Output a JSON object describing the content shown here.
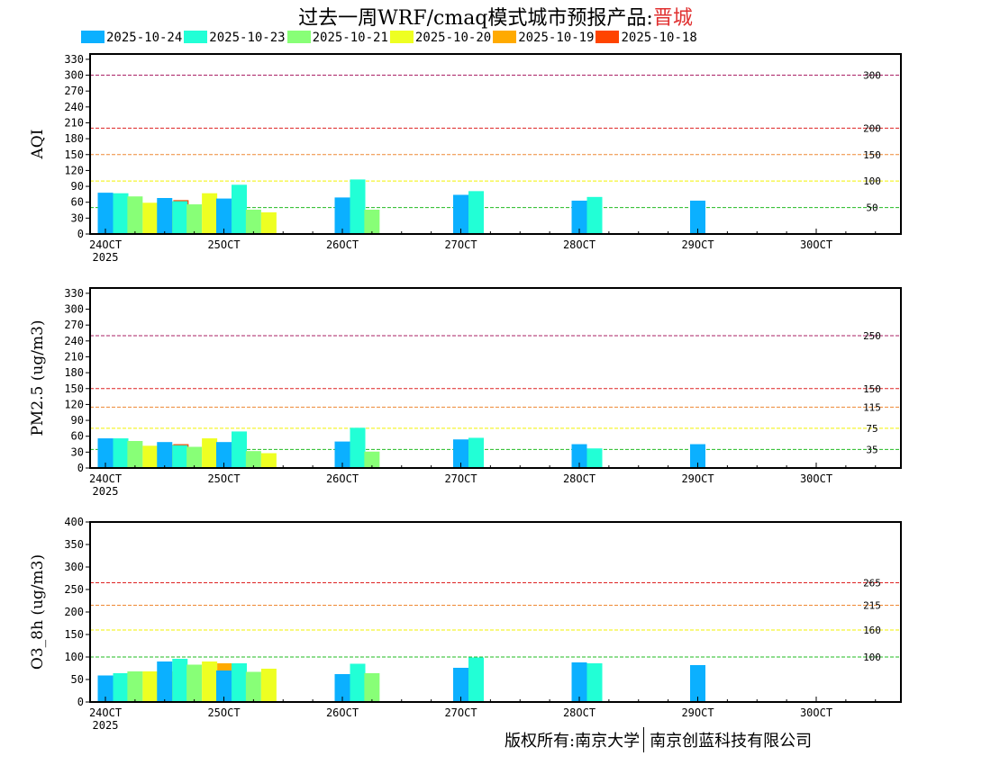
{
  "header": {
    "title_prefix": "过去一周WRF/cmaq模式城市预报产品:",
    "city": "晋城"
  },
  "legend": [
    {
      "label": "2025-10-24",
      "color": "#0bb0ff"
    },
    {
      "label": "2025-10-23",
      "color": "#22ffd6"
    },
    {
      "label": "2025-10-21",
      "color": "#88ff77"
    },
    {
      "label": "2025-10-20",
      "color": "#eeff22"
    },
    {
      "label": "2025-10-19",
      "color": "#ffaa00"
    },
    {
      "label": "2025-10-18",
      "color": "#ff4400"
    }
  ],
  "footer": {
    "copyright_left": "版权所有:南京大学",
    "copyright_right": "南京创蓝科技有限公司"
  },
  "chart_data": [
    {
      "type": "bar",
      "ylabel": "AQI",
      "ylim": [
        0,
        340
      ],
      "yticks": [
        0,
        30,
        60,
        90,
        120,
        150,
        180,
        210,
        240,
        270,
        300,
        330
      ],
      "xticks": [
        "24OCT",
        "25OCT",
        "26OCT",
        "27OCT",
        "28OCT",
        "29OCT",
        "30OCT"
      ],
      "year_label": "2025",
      "thresholds": [
        {
          "value": 300,
          "label": "300",
          "color": "#aa2266"
        },
        {
          "value": 200,
          "label": "200",
          "color": "#dd2222"
        },
        {
          "value": 150,
          "label": "150",
          "color": "#ee8833"
        },
        {
          "value": 100,
          "label": "100",
          "color": "#f2f200"
        },
        {
          "value": 50,
          "label": "50",
          "color": "#22bb22"
        }
      ],
      "groups": [
        {
          "slot": 0,
          "values": [
            78,
            77,
            null,
            null,
            null,
            null
          ]
        },
        {
          "slot": 1,
          "values": [
            null,
            null,
            71,
            59,
            62,
            64
          ]
        },
        {
          "slot": 2,
          "values": [
            68,
            62,
            null,
            null,
            null,
            null
          ]
        },
        {
          "slot": 3,
          "values": [
            null,
            null,
            56,
            77,
            62,
            null
          ]
        },
        {
          "slot": 4,
          "values": [
            67,
            93,
            null,
            null,
            null,
            null
          ]
        },
        {
          "slot": 5,
          "values": [
            null,
            null,
            46,
            41,
            null,
            null
          ]
        },
        {
          "slot": 8,
          "values": [
            69,
            103,
            null,
            null,
            null,
            null
          ]
        },
        {
          "slot": 9,
          "values": [
            null,
            null,
            46,
            null,
            null,
            null
          ]
        },
        {
          "slot": 12,
          "values": [
            74,
            81,
            null,
            null,
            null,
            null
          ]
        },
        {
          "slot": 16,
          "values": [
            63,
            70,
            null,
            null,
            null,
            null
          ]
        },
        {
          "slot": 20,
          "values": [
            63,
            null,
            null,
            null,
            null,
            null
          ]
        }
      ]
    },
    {
      "type": "bar",
      "ylabel": "PM2.5 (ug/m3)",
      "ylim": [
        0,
        340
      ],
      "yticks": [
        0,
        30,
        60,
        90,
        120,
        150,
        180,
        210,
        240,
        270,
        300,
        330
      ],
      "xticks": [
        "24OCT",
        "25OCT",
        "26OCT",
        "27OCT",
        "28OCT",
        "29OCT",
        "30OCT"
      ],
      "year_label": "2025",
      "thresholds": [
        {
          "value": 250,
          "label": "250",
          "color": "#aa2266"
        },
        {
          "value": 150,
          "label": "150",
          "color": "#dd2222"
        },
        {
          "value": 115,
          "label": "115",
          "color": "#ee8833"
        },
        {
          "value": 75,
          "label": "75",
          "color": "#f2f200"
        },
        {
          "value": 35,
          "label": "35",
          "color": "#22bb22"
        }
      ],
      "groups": [
        {
          "slot": 0,
          "values": [
            56,
            56,
            null,
            null,
            null,
            null
          ]
        },
        {
          "slot": 1,
          "values": [
            null,
            null,
            51,
            42,
            44,
            45
          ]
        },
        {
          "slot": 2,
          "values": [
            49,
            43,
            null,
            null,
            null,
            null
          ]
        },
        {
          "slot": 3,
          "values": [
            null,
            null,
            40,
            56,
            44,
            null
          ]
        },
        {
          "slot": 4,
          "values": [
            49,
            69,
            null,
            null,
            null,
            null
          ]
        },
        {
          "slot": 5,
          "values": [
            null,
            null,
            32,
            28,
            null,
            null
          ]
        },
        {
          "slot": 8,
          "values": [
            50,
            76,
            null,
            null,
            null,
            null
          ]
        },
        {
          "slot": 9,
          "values": [
            null,
            null,
            31,
            null,
            null,
            null
          ]
        },
        {
          "slot": 12,
          "values": [
            54,
            57,
            null,
            null,
            null,
            null
          ]
        },
        {
          "slot": 16,
          "values": [
            45,
            37,
            null,
            null,
            null,
            null
          ]
        },
        {
          "slot": 20,
          "values": [
            45,
            null,
            null,
            null,
            null,
            null
          ]
        }
      ]
    },
    {
      "type": "bar",
      "ylabel": "O3_8h (ug/m3)",
      "ylim": [
        0,
        400
      ],
      "yticks": [
        0,
        50,
        100,
        150,
        200,
        250,
        300,
        350,
        400
      ],
      "xticks": [
        "24OCT",
        "25OCT",
        "26OCT",
        "27OCT",
        "28OCT",
        "29OCT",
        "30OCT"
      ],
      "year_label": "2025",
      "thresholds": [
        {
          "value": 265,
          "label": "265",
          "color": "#dd2222"
        },
        {
          "value": 215,
          "label": "215",
          "color": "#ee8833"
        },
        {
          "value": 160,
          "label": "160",
          "color": "#f2f200"
        },
        {
          "value": 100,
          "label": "100",
          "color": "#22bb22"
        }
      ],
      "groups": [
        {
          "slot": 0,
          "values": [
            59,
            64,
            null,
            null,
            null,
            null
          ]
        },
        {
          "slot": 1,
          "values": [
            null,
            null,
            68,
            68,
            68,
            78
          ]
        },
        {
          "slot": 2,
          "values": [
            90,
            96,
            null,
            null,
            null,
            null
          ]
        },
        {
          "slot": 3,
          "values": [
            null,
            null,
            83,
            90,
            86,
            null
          ]
        },
        {
          "slot": 4,
          "values": [
            70,
            86,
            null,
            null,
            null,
            null
          ]
        },
        {
          "slot": 5,
          "values": [
            null,
            null,
            67,
            74,
            null,
            null
          ]
        },
        {
          "slot": 8,
          "values": [
            62,
            85,
            null,
            null,
            null,
            null
          ]
        },
        {
          "slot": 9,
          "values": [
            null,
            null,
            64,
            null,
            null,
            null
          ]
        },
        {
          "slot": 12,
          "values": [
            76,
            99,
            null,
            null,
            null,
            null
          ]
        },
        {
          "slot": 16,
          "values": [
            88,
            86,
            null,
            null,
            null,
            null
          ]
        },
        {
          "slot": 20,
          "values": [
            82,
            null,
            null,
            null,
            null,
            null
          ]
        }
      ]
    }
  ]
}
